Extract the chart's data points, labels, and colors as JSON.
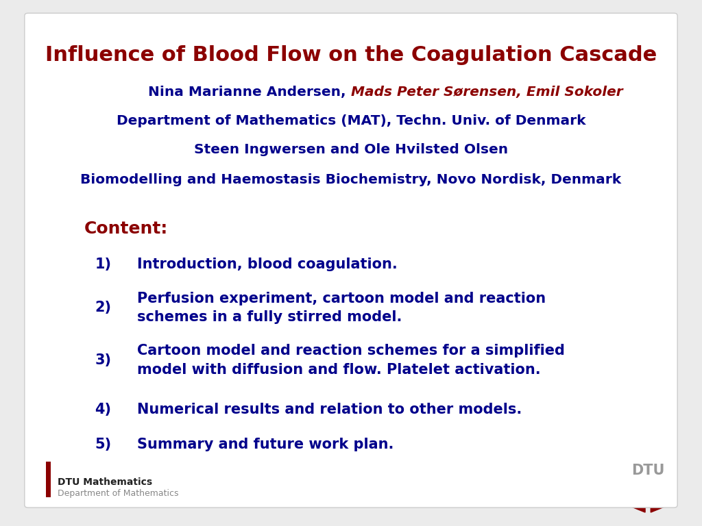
{
  "title": "Influence of Blood Flow on the Coagulation Cascade",
  "title_color": "#8B0000",
  "title_fontsize": 22,
  "author_line1_normal": "Nina Marianne Andersen, ",
  "author_line1_bold_italic": "Mads Peter Sørensen, Emil Sokoler",
  "author_line1_color_normal": "#00008B",
  "author_line1_color_bold": "#8B0000",
  "author_line2": "Department of Mathematics (MAT), Techn. Univ. of Denmark",
  "author_line3": "Steen Ingwersen and Ole Hvilsted Olsen",
  "author_line4": "Biomodelling and Haemostasis Biochemistry, Novo Nordisk, Denmark",
  "author_color": "#00008B",
  "author_fontsize": 14.5,
  "content_label": "Content:",
  "content_label_color": "#8B0000",
  "content_label_fontsize": 18,
  "content_items": [
    "Introduction, blood coagulation.",
    "Perfusion experiment, cartoon model and reaction\nschemes in a fully stirred model.",
    "Cartoon model and reaction schemes for a simplified\nmodel with diffusion and flow. Platelet activation.",
    "Numerical results and relation to other models.",
    "Summary and future work plan."
  ],
  "content_color": "#00008B",
  "content_fontsize": 15,
  "dtu_math_text": "DTU Mathematics",
  "dtu_dept_text": "Department of Mathematics",
  "dtu_text_color": "#222222",
  "dtu_dept_color": "#888888",
  "dtu_bar_color": "#8B0000",
  "dtu_logo_color": "#8B0000",
  "bg_color": "#FFFFFF",
  "border_color": "#CCCCCC",
  "slide_bg": "#EBEBEB"
}
